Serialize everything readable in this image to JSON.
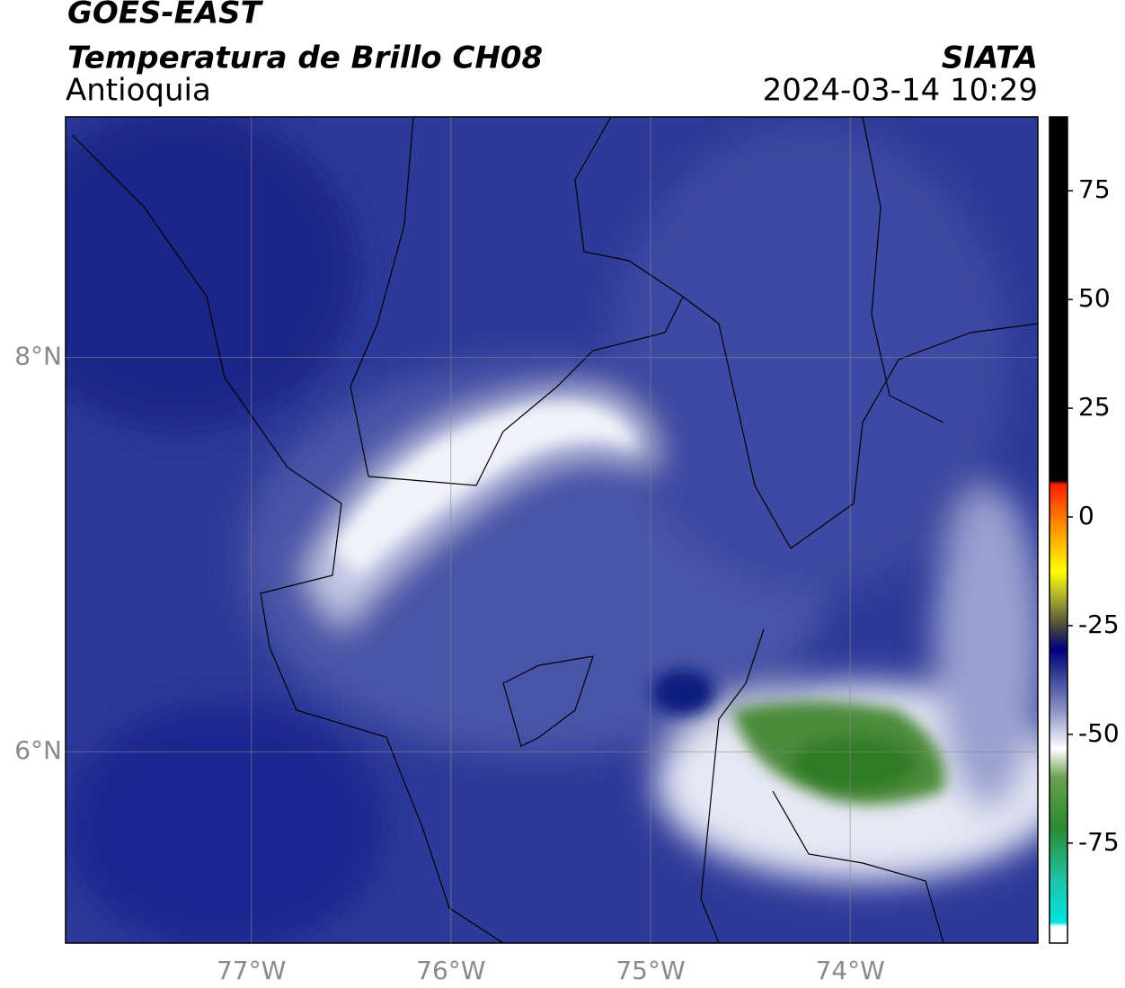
{
  "header": {
    "title": "GOES-EAST",
    "subtitle": "Temperatura de Brillo CH08",
    "region": "Antioquia",
    "source": "SIATA",
    "datetime": "2024-03-14 10:29"
  },
  "map": {
    "lon_lim": [
      -77.93,
      -73.06
    ],
    "lat_lim": [
      5.03,
      9.22
    ],
    "lon_ticks": [
      {
        "value": -77,
        "label": "77°W"
      },
      {
        "value": -76,
        "label": "76°W"
      },
      {
        "value": -75,
        "label": "75°W"
      },
      {
        "value": -74,
        "label": "74°W"
      }
    ],
    "lat_ticks": [
      {
        "value": 8,
        "label": "8°N"
      },
      {
        "value": 6,
        "label": "6°N"
      }
    ]
  },
  "colorbar": {
    "lim": [
      -98,
      92
    ],
    "ticks": [
      75,
      50,
      25,
      0,
      -25,
      -50,
      -75
    ]
  }
}
